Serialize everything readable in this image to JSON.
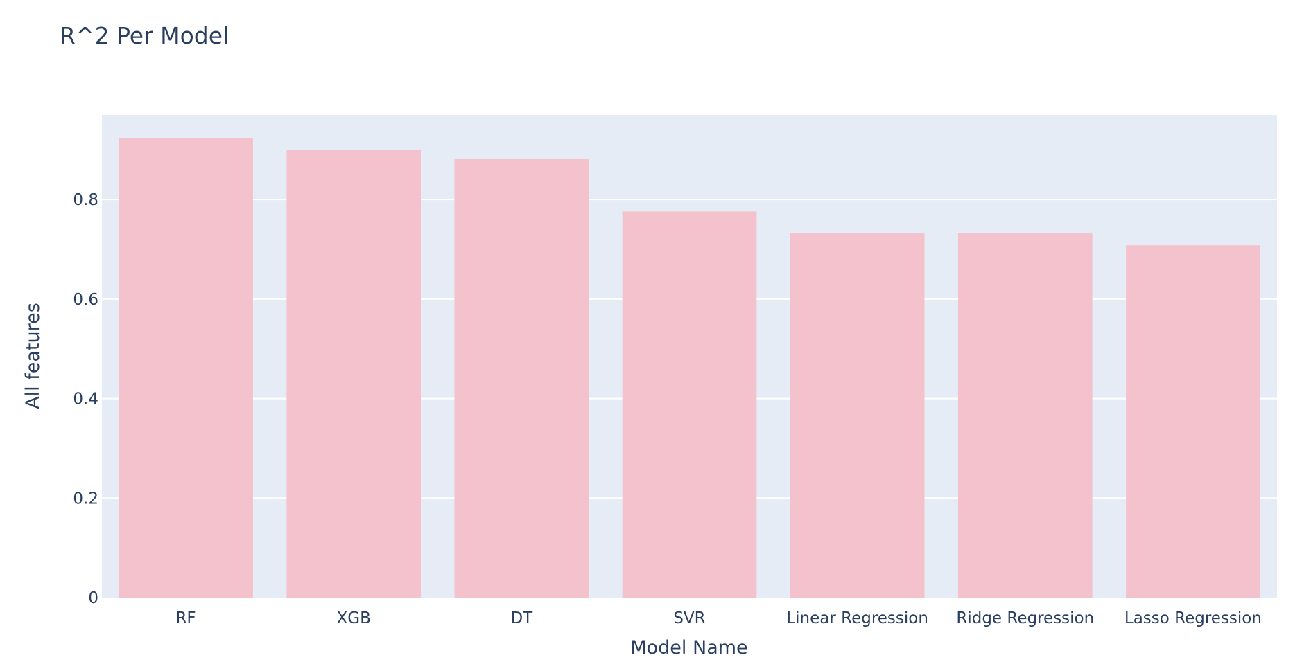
{
  "chart_data": {
    "type": "bar",
    "title": "R^2 Per Model",
    "xlabel": "Model Name",
    "ylabel": "All features",
    "categories": [
      "RF",
      "XGB",
      "DT",
      "SVR",
      "Linear Regression",
      "Ridge Regression",
      "Lasso Regression"
    ],
    "series": [
      {
        "values": [
          0.923,
          0.9,
          0.881,
          0.776,
          0.733,
          0.733,
          0.708
        ]
      }
    ],
    "ylim": [
      0,
      0.97
    ],
    "yticks": [
      0,
      0.2,
      0.4,
      0.6,
      0.8
    ],
    "ytick_labels": [
      "0",
      "0.2",
      "0.4",
      "0.6",
      "0.8"
    ],
    "grid": true,
    "colors": {
      "bar": "#f4c2cc",
      "plot_background": "#e5ecf6",
      "grid": "#ffffff",
      "text": "#2a3f5f"
    }
  }
}
